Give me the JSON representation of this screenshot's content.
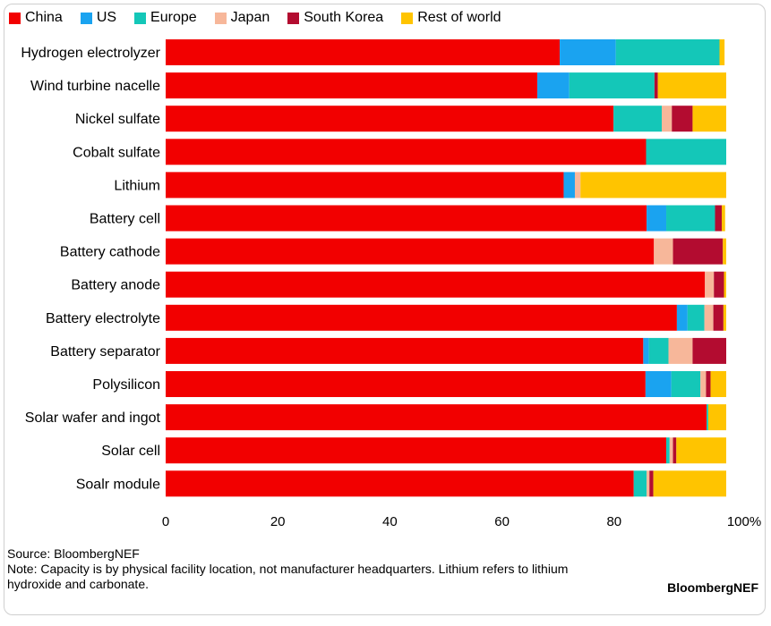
{
  "chart_data": {
    "type": "bar",
    "orientation": "horizontal",
    "stacked": true,
    "title": "",
    "xlabel": "",
    "ylabel": "",
    "xlim": [
      0,
      100
    ],
    "x_ticks": [
      "0",
      "20",
      "40",
      "60",
      "80",
      "100%"
    ],
    "grid": false,
    "legend_position": "top",
    "categories": [
      "Hydrogen electrolyzer",
      "Wind turbine nacelle",
      "Nickel sulfate",
      "Cobalt sulfate",
      "Lithium",
      "Battery cell",
      "Battery cathode",
      "Battery anode",
      "Battery electrolyte",
      "Battery separator",
      "Polysilicon",
      "Solar wafer and ingot",
      "Solar cell",
      "Soalr module"
    ],
    "series": [
      {
        "name": "China",
        "color": "#f20000",
        "values": [
          70.3,
          66.3,
          79.9,
          85.7,
          71.0,
          85.8,
          87.1,
          96.2,
          91.2,
          85.2,
          85.6,
          96.5,
          89.3,
          83.5
        ]
      },
      {
        "name": "US",
        "color": "#1aa3f0",
        "values": [
          10.0,
          5.7,
          0,
          0,
          2.0,
          3.5,
          0,
          0,
          1.9,
          1.0,
          4.6,
          0,
          0,
          0
        ]
      },
      {
        "name": "Europe",
        "color": "#14c7b8",
        "values": [
          18.5,
          15.2,
          8.6,
          14.3,
          0,
          8.7,
          0,
          0,
          3.0,
          3.5,
          5.2,
          0.3,
          0.6,
          2.3
        ]
      },
      {
        "name": "Japan",
        "color": "#f7b79a",
        "values": [
          0,
          0,
          1.8,
          0,
          1.0,
          0,
          3.4,
          1.6,
          1.6,
          4.3,
          1.0,
          0,
          0.6,
          0.5
        ]
      },
      {
        "name": "South Korea",
        "color": "#b30c30",
        "values": [
          0,
          0.6,
          3.7,
          0,
          0,
          1.2,
          8.9,
          1.8,
          1.8,
          6.0,
          0.8,
          0,
          0.6,
          0.7
        ]
      },
      {
        "name": "Rest of world",
        "color": "#ffc400",
        "values": [
          0.9,
          12.2,
          6.0,
          0,
          26.0,
          0.6,
          0.6,
          0.4,
          0.5,
          0,
          2.8,
          3.2,
          8.9,
          13.0
        ]
      }
    ]
  },
  "footer": {
    "source": "Source: BloombergNEF",
    "note": "Note: Capacity is by physical facility location, not manufacturer headquarters. Lithium refers to lithium hydroxide and carbonate.",
    "brand": "BloombergNEF"
  }
}
